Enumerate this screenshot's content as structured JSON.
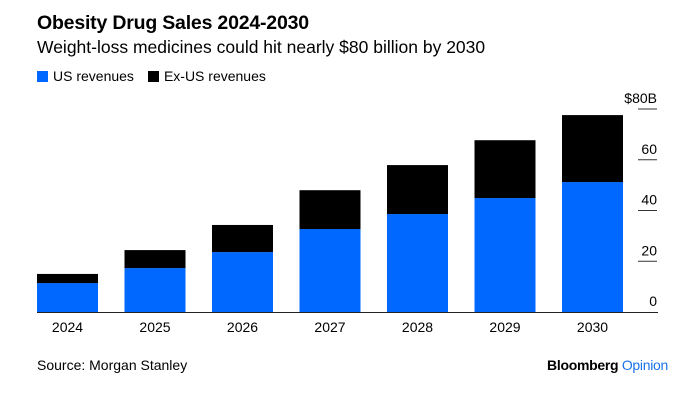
{
  "chart_data": {
    "type": "bar",
    "stacked": true,
    "title": "Obesity Drug Sales 2024-2030",
    "subtitle": "Weight-loss medicines could hit nearly $80 billion by 2030",
    "xlabel": "",
    "ylabel": "",
    "categories": [
      "2024",
      "2025",
      "2026",
      "2027",
      "2028",
      "2029",
      "2030"
    ],
    "series": [
      {
        "name": "US revenues",
        "color": "#0068ff",
        "values": [
          11.4,
          17.3,
          23.6,
          32.7,
          38.6,
          44.9,
          51.2
        ]
      },
      {
        "name": "Ex-US revenues",
        "color": "#000000",
        "values": [
          3.6,
          7.1,
          10.7,
          15.3,
          19.3,
          22.8,
          26.4
        ]
      }
    ],
    "ylim": [
      0,
      80
    ],
    "yticks": [
      0,
      20,
      40,
      60,
      80
    ],
    "ytick_labels": [
      "0",
      "20",
      "40",
      "60",
      "$80B"
    ],
    "y_axis_position": "right",
    "legend_position": "top-left",
    "grid": false
  },
  "footer": {
    "source": "Source: Morgan Stanley",
    "brand_main": "Bloomberg",
    "brand_accent": "Opinion"
  }
}
